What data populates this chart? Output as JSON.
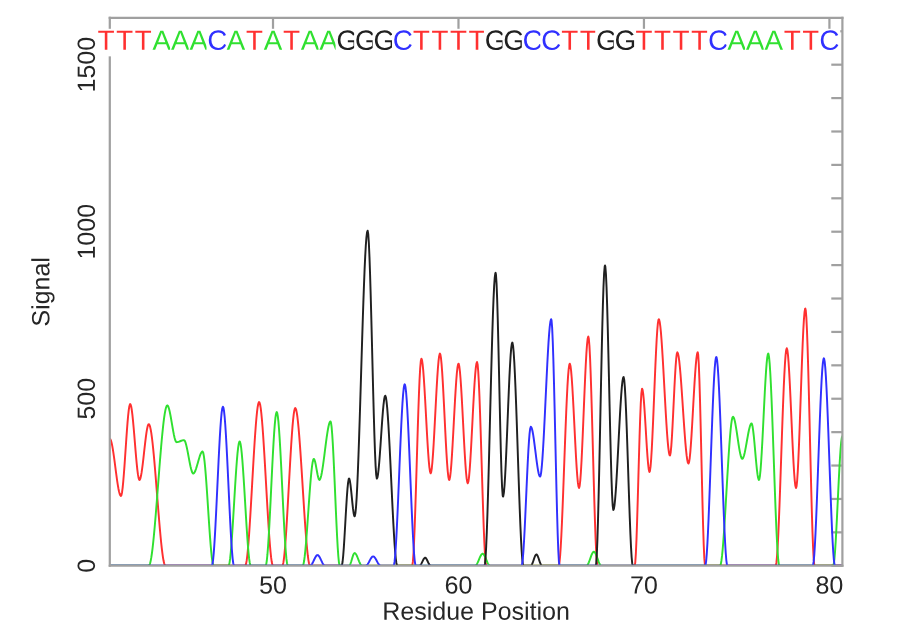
{
  "chart_data": {
    "type": "line",
    "xlabel": "Residue Position",
    "ylabel": "Signal",
    "xlim": [
      41.2,
      80.7
    ],
    "ylim": [
      0,
      1640
    ],
    "xticks": [
      50,
      60,
      70,
      80
    ],
    "yticks": [
      0,
      {
        "value": 100,
        "label": null
      },
      {
        "value": 200,
        "label": null
      },
      {
        "value": 300,
        "label": null
      },
      {
        "value": 400,
        "label": null
      },
      500,
      {
        "value": 600,
        "label": null
      },
      {
        "value": 700,
        "label": null
      },
      {
        "value": 800,
        "label": null
      },
      {
        "value": 900,
        "label": null
      },
      1000,
      {
        "value": 1100,
        "label": null
      },
      {
        "value": 1200,
        "label": null
      },
      {
        "value": 1300,
        "label": null
      },
      {
        "value": 1400,
        "label": null
      },
      1500,
      {
        "value": 1600,
        "label": null
      }
    ],
    "grid": false,
    "legend": false,
    "marker": "none",
    "line_style": "solid",
    "series": [
      {
        "color": "#ff3030",
        "x": [
          41.2,
          41.8,
          42.3,
          42.8,
          43.3,
          44.2,
          48.5,
          49.25,
          50.0,
          50.5,
          51.2,
          52.0,
          57.5,
          58.0,
          58.5,
          59.0,
          59.5,
          60.0,
          60.5,
          61.0,
          61.5,
          65.4,
          66.0,
          66.5,
          67.0,
          67.5,
          69.5,
          69.9,
          70.3,
          70.8,
          71.4,
          71.8,
          72.4,
          72.9,
          73.3,
          77.1,
          77.7,
          78.2,
          78.7,
          79.2,
          80.7
        ],
        "values": [
          380,
          209,
          484,
          257,
          424,
          0,
          0,
          490,
          0,
          0,
          472,
          0,
          0,
          620,
          277,
          635,
          257,
          605,
          247,
          610,
          0,
          0,
          605,
          233,
          686,
          0,
          0,
          530,
          281,
          738,
          330,
          639,
          306,
          639,
          0,
          0,
          651,
          233,
          770,
          0,
          0
        ]
      },
      {
        "color": "#30e030",
        "x": [
          41.2,
          43.3,
          44.3,
          44.8,
          45.2,
          45.7,
          46.2,
          46.8,
          47.6,
          48.2,
          48.8,
          49.6,
          50.2,
          50.8,
          51.6,
          52.2,
          52.5,
          53.1,
          53.6,
          54.1,
          54.4,
          54.8,
          60.9,
          61.3,
          61.7,
          66.9,
          67.3,
          67.7,
          74.1,
          74.8,
          75.3,
          75.8,
          76.2,
          76.7,
          77.3,
          80.2,
          80.7
        ],
        "values": [
          0,
          0,
          480,
          370,
          376,
          276,
          342,
          0,
          0,
          372,
          0,
          0,
          460,
          0,
          0,
          320,
          257,
          432,
          0,
          0,
          38,
          0,
          0,
          36,
          0,
          0,
          42,
          0,
          0,
          446,
          320,
          426,
          257,
          635,
          0,
          0,
          388
        ]
      },
      {
        "color": "#202020",
        "x": [
          41.2,
          53.7,
          54.1,
          54.4,
          55.1,
          55.6,
          56.05,
          56.7,
          57.9,
          58.2,
          58.5,
          61.4,
          62.0,
          62.4,
          62.9,
          63.5,
          63.9,
          64.2,
          64.5,
          67.4,
          67.9,
          68.35,
          68.9,
          69.4,
          80.7
        ],
        "values": [
          0,
          0,
          261,
          148,
          1003,
          261,
          509,
          0,
          0,
          24,
          0,
          0,
          877,
          207,
          668,
          0,
          0,
          34,
          0,
          0,
          899,
          167,
          565,
          0,
          0
        ]
      },
      {
        "color": "#3030ff",
        "x": [
          41.2,
          46.7,
          47.3,
          47.9,
          52.0,
          52.4,
          52.8,
          55.0,
          55.4,
          55.8,
          56.5,
          57.1,
          57.7,
          63.4,
          63.9,
          64.4,
          65.0,
          65.45,
          73.3,
          73.9,
          74.5,
          79.1,
          79.7,
          80.3,
          80.7
        ],
        "values": [
          0,
          0,
          476,
          0,
          0,
          32,
          0,
          0,
          28,
          0,
          0,
          543,
          0,
          0,
          416,
          267,
          738,
          0,
          0,
          625,
          0,
          0,
          621,
          0,
          0
        ]
      }
    ],
    "annotations": [
      "TTTAAACATATAAGGGCTTTTGGCCTTGGTTTTCAAATTC"
    ]
  }
}
